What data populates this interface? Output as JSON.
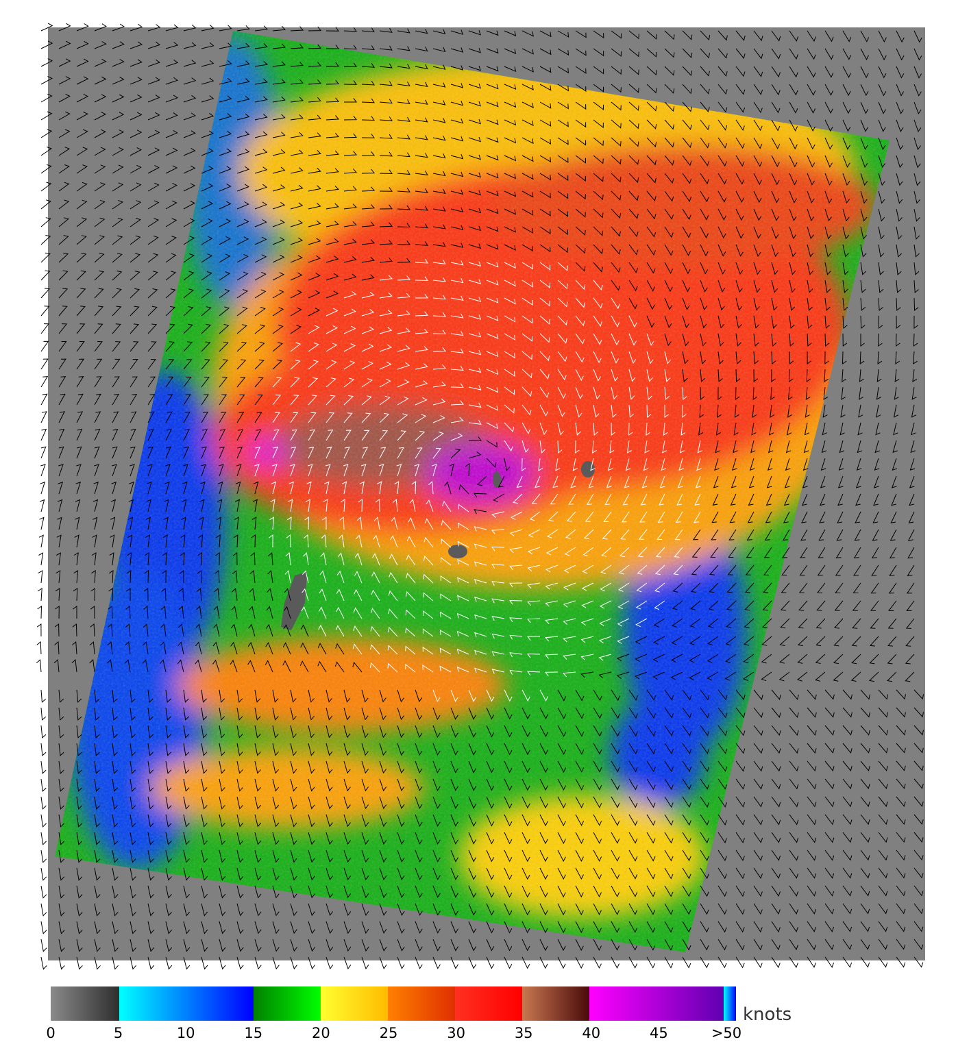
{
  "colorbar": {
    "units": "knots",
    "ticks": [
      "0",
      "5",
      "10",
      "15",
      "20",
      "25",
      "30",
      "35",
      "40",
      "45",
      ">50"
    ],
    "segments": [
      {
        "range": "0-5",
        "from": "#8a8a8a",
        "to": "#2e2e2e"
      },
      {
        "range": "5-15",
        "from": "#00ffff",
        "to": "#0000ff"
      },
      {
        "range": "15-20",
        "from": "#008000",
        "to": "#00ff00"
      },
      {
        "range": "20-25",
        "from": "#ffff30",
        "to": "#ffbb00"
      },
      {
        "range": "25-30",
        "from": "#ff8000",
        "to": "#e03000"
      },
      {
        "range": "30-35",
        "from": "#ff3020",
        "to": "#ff0000"
      },
      {
        "range": "35-40",
        "from": "#c87850",
        "to": "#4a0a0a"
      },
      {
        "range": "40-50",
        "from": "#ff00ff",
        "to": "#6000b0"
      },
      {
        "range": ">50",
        "from": "#00ffff",
        "to": "#0000ff"
      }
    ]
  },
  "map": {
    "background_color": "#808080",
    "land_color": "#5a5a5a",
    "wind_barb_colors": [
      "#000000",
      "#ffffff"
    ],
    "feature": "cyclone wind field with wind barbs"
  }
}
